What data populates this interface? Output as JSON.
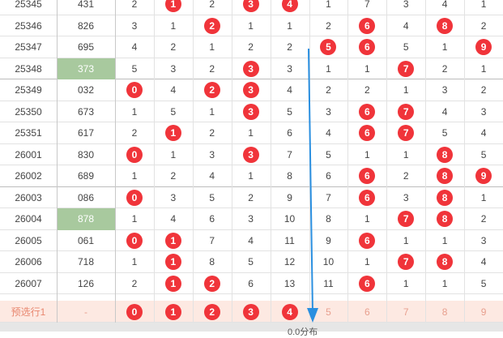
{
  "accent_ball_color": "#f0343a",
  "highlight_color": "#a8c99e",
  "rows": [
    {
      "period": "25345",
      "num": "431",
      "cells": [
        "2",
        "1",
        "2",
        "3",
        "4",
        "1",
        "7",
        "3",
        "4",
        "1"
      ],
      "balls": [
        1,
        3,
        4
      ],
      "hl": false
    },
    {
      "period": "25346",
      "num": "826",
      "cells": [
        "3",
        "1",
        "2",
        "1",
        "1",
        "2",
        "6",
        "4",
        "8",
        "2"
      ],
      "balls": [
        2,
        6,
        8
      ],
      "hl": false
    },
    {
      "period": "25347",
      "num": "695",
      "cells": [
        "4",
        "2",
        "1",
        "2",
        "2",
        "5",
        "6",
        "5",
        "1",
        "9"
      ],
      "balls": [
        5,
        6,
        9
      ],
      "hl": false
    },
    {
      "period": "25348",
      "num": "373",
      "cells": [
        "5",
        "3",
        "2",
        "3",
        "3",
        "1",
        "1",
        "7",
        "2",
        "1"
      ],
      "balls": [
        3,
        7
      ],
      "hl": true
    },
    {
      "period": "25349",
      "num": "032",
      "cells": [
        "0",
        "4",
        "2",
        "3",
        "4",
        "2",
        "2",
        "1",
        "3",
        "2"
      ],
      "balls": [
        0,
        2,
        3
      ],
      "hl": false
    },
    {
      "period": "25350",
      "num": "673",
      "cells": [
        "1",
        "5",
        "1",
        "3",
        "5",
        "3",
        "6",
        "7",
        "4",
        "3"
      ],
      "balls": [
        3,
        6,
        7
      ],
      "hl": false
    },
    {
      "period": "25351",
      "num": "617",
      "cells": [
        "2",
        "1",
        "2",
        "1",
        "6",
        "4",
        "6",
        "7",
        "5",
        "4"
      ],
      "balls": [
        1,
        6,
        7
      ],
      "hl": false
    },
    {
      "period": "26001",
      "num": "830",
      "cells": [
        "0",
        "1",
        "3",
        "3",
        "7",
        "5",
        "1",
        "1",
        "8",
        "5"
      ],
      "balls": [
        0,
        3,
        8
      ],
      "hl": false
    },
    {
      "period": "26002",
      "num": "689",
      "cells": [
        "1",
        "2",
        "4",
        "1",
        "8",
        "6",
        "6",
        "2",
        "8",
        "9"
      ],
      "balls": [
        6,
        8,
        9
      ],
      "hl": false
    },
    {
      "period": "26003",
      "num": "086",
      "cells": [
        "0",
        "3",
        "5",
        "2",
        "9",
        "7",
        "6",
        "3",
        "8",
        "1"
      ],
      "balls": [
        0,
        6,
        8
      ],
      "hl": false
    },
    {
      "period": "26004",
      "num": "878",
      "cells": [
        "1",
        "4",
        "6",
        "3",
        "10",
        "8",
        "1",
        "7",
        "8",
        "2"
      ],
      "balls": [
        7,
        8
      ],
      "hl": true
    },
    {
      "period": "26005",
      "num": "061",
      "cells": [
        "0",
        "1",
        "7",
        "4",
        "11",
        "9",
        "6",
        "1",
        "1",
        "3"
      ],
      "balls": [
        0,
        1,
        6
      ],
      "hl": false
    },
    {
      "period": "26006",
      "num": "718",
      "cells": [
        "1",
        "1",
        "8",
        "5",
        "12",
        "10",
        "1",
        "7",
        "8",
        "4"
      ],
      "balls": [
        1,
        7,
        8
      ],
      "hl": false
    },
    {
      "period": "26007",
      "num": "126",
      "cells": [
        "2",
        "1",
        "2",
        "6",
        "13",
        "11",
        "6",
        "1",
        "1",
        "5"
      ],
      "balls": [
        1,
        2,
        6
      ],
      "hl": false
    }
  ],
  "preselect": {
    "label": "预选行1",
    "num": "-",
    "cells": [
      "0",
      "1",
      "2",
      "3",
      "4",
      "5",
      "6",
      "7",
      "8",
      "9"
    ],
    "balls": [
      0,
      1,
      2,
      3,
      4
    ]
  },
  "footer_text": "0.0分布"
}
